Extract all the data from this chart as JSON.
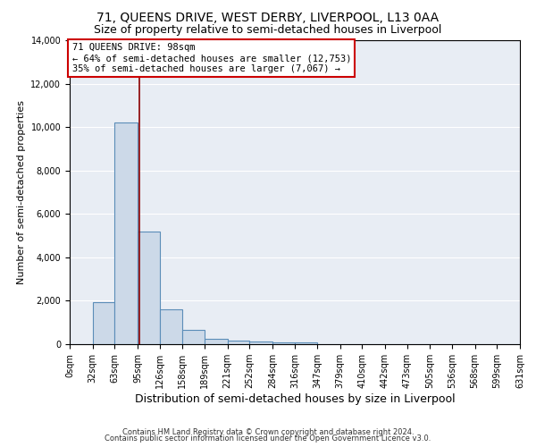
{
  "title": "71, QUEENS DRIVE, WEST DERBY, LIVERPOOL, L13 0AA",
  "subtitle": "Size of property relative to semi-detached houses in Liverpool",
  "xlabel": "Distribution of semi-detached houses by size in Liverpool",
  "ylabel": "Number of semi-detached properties",
  "annotation_line1": "71 QUEENS DRIVE: 98sqm",
  "annotation_line2": "← 64% of semi-detached houses are smaller (12,753)",
  "annotation_line3": "35% of semi-detached houses are larger (7,067) →",
  "property_size": 98,
  "bar_edges": [
    0,
    32,
    63,
    95,
    126,
    158,
    189,
    221,
    252,
    284,
    316,
    347,
    379,
    410,
    442,
    473,
    505,
    536,
    568,
    599,
    631
  ],
  "bar_heights": [
    0,
    1950,
    10200,
    5200,
    1600,
    650,
    260,
    160,
    130,
    100,
    100,
    0,
    0,
    0,
    0,
    0,
    0,
    0,
    0,
    0
  ],
  "bar_color": "#ccd9e8",
  "bar_edge_color": "#5b8db8",
  "bar_linewidth": 0.8,
  "vline_color": "#8b0000",
  "vline_linewidth": 1.2,
  "annotation_box_edgecolor": "#cc0000",
  "annotation_box_facecolor": "white",
  "ylim": [
    0,
    14000
  ],
  "xlim": [
    0,
    631
  ],
  "background_color": "#e8edf4",
  "grid_color": "white",
  "title_fontsize": 10,
  "subtitle_fontsize": 9,
  "xlabel_fontsize": 9,
  "ylabel_fontsize": 8,
  "tick_fontsize": 7,
  "annotation_fontsize": 7.5,
  "footer_line1": "Contains HM Land Registry data © Crown copyright and database right 2024.",
  "footer_line2": "Contains public sector information licensed under the Open Government Licence v3.0."
}
